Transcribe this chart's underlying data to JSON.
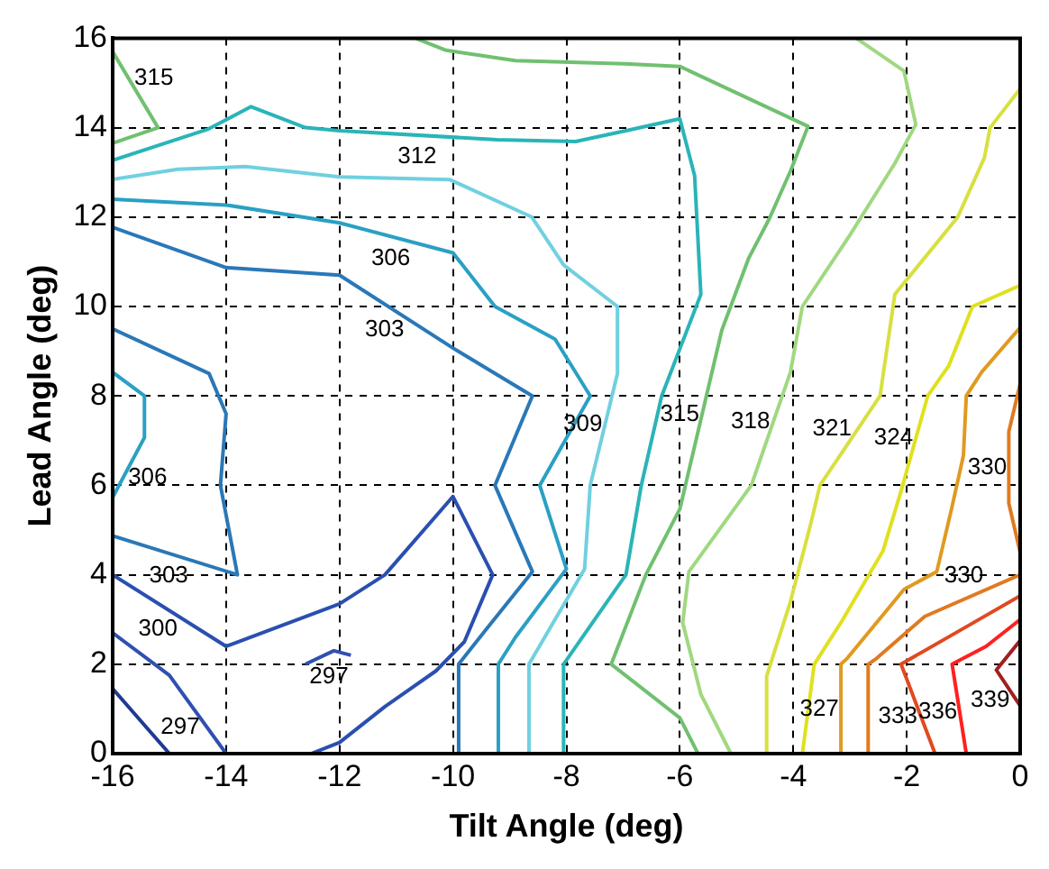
{
  "chart_data": {
    "type": "line",
    "xlabel": "Tilt Angle (deg)",
    "ylabel": "Lead Angle (deg)",
    "xlim": [
      -16,
      0
    ],
    "xticks": [
      -16,
      -14,
      -12,
      -10,
      -8,
      -6,
      -4,
      -2,
      0
    ],
    "ylim": [
      0,
      16
    ],
    "yticks": [
      0,
      2,
      4,
      6,
      8,
      10,
      12,
      14,
      16
    ],
    "grid": true,
    "legend": false,
    "marker": "none",
    "line_style": "solid",
    "series": [
      {
        "color": "#1f3a93",
        "x": [
          -16,
          -15
        ],
        "values": [
          1.45,
          0
        ]
      },
      {
        "name": "297",
        "color": "#3050b0",
        "x": [
          -16,
          -15,
          -14
        ],
        "values": [
          2.7,
          1.75,
          0
        ]
      },
      {
        "name": "297",
        "color": "#3050b0",
        "x": [
          -12.6,
          -12.1,
          -11.8
        ],
        "values": [
          2.0,
          2.3,
          2.2
        ]
      },
      {
        "name": "300",
        "color": "#2a4fb0",
        "x": [
          -16,
          -14,
          -12,
          -11.2,
          -10,
          -9.3,
          -9.8,
          -10.3,
          -11.2,
          -12,
          -12.5
        ],
        "values": [
          4.0,
          2.4,
          3.35,
          4.0,
          5.75,
          4.0,
          2.5,
          1.85,
          1.05,
          0.25,
          0
        ]
      },
      {
        "name": "303",
        "color": "#2a78b8",
        "x": [
          -16,
          -13.8,
          -14.1,
          -14,
          -14.3,
          -16
        ],
        "values": [
          4.87,
          4.0,
          6.0,
          7.6,
          8.5,
          9.5
        ]
      },
      {
        "name": "303",
        "color": "#2a78b8",
        "x": [
          -16,
          -14,
          -12,
          -10,
          -8.6,
          -9.26,
          -8.6,
          -9.4,
          -9.9,
          -9.9
        ],
        "values": [
          11.77,
          10.87,
          10.7,
          9.07,
          8.0,
          6.0,
          4.07,
          2.8,
          2.0,
          0
        ]
      },
      {
        "name": "306",
        "color": "#2aa0c4",
        "x": [
          -16,
          -15.44,
          -15.44,
          -16
        ],
        "values": [
          8.53,
          8.0,
          7.07,
          5.73
        ]
      },
      {
        "name": "306",
        "color": "#2aa0c4",
        "x": [
          -16,
          -14,
          -12,
          -10,
          -9.26,
          -8.2,
          -7.58,
          -8.47,
          -8.0,
          -8.9,
          -9.2,
          -9.2
        ],
        "values": [
          12.4,
          12.27,
          11.87,
          11.2,
          10.0,
          9.27,
          8.0,
          6.0,
          4.13,
          2.6,
          2.0,
          0
        ]
      },
      {
        "name": "309",
        "color": "#70d0e0",
        "x": [
          -16,
          -14.85,
          -13.66,
          -12,
          -10.06,
          -8.61,
          -8.05,
          -7.1,
          -7.1,
          -7.58,
          -7.68,
          -8.66,
          -8.66
        ],
        "values": [
          12.84,
          13.07,
          13.13,
          12.9,
          12.84,
          12.0,
          10.93,
          10.0,
          8.5,
          6.0,
          4.13,
          2.0,
          0
        ]
      },
      {
        "name": "312",
        "color": "#2ab4b8",
        "x": [
          -16,
          -14.31,
          -13.56,
          -12.6,
          -12,
          -9.22,
          -7.84,
          -6.95,
          -6.0,
          -5.74,
          -5.63,
          -6.32,
          -6.68,
          -6.95,
          -7.5,
          -8.05,
          -8.05
        ],
        "values": [
          13.27,
          13.97,
          14.47,
          14.0,
          13.93,
          13.73,
          13.69,
          13.93,
          14.2,
          12.93,
          10.27,
          8.0,
          6.0,
          4.0,
          3.0,
          2.0,
          0
        ]
      },
      {
        "name": "315",
        "color": "#70c070",
        "x": [
          -16,
          -15.2,
          -16
        ],
        "values": [
          15.7,
          14.0,
          13.65
        ]
      },
      {
        "name": "315",
        "color": "#70c070",
        "x": [
          -10.66,
          -10.12,
          -8.9,
          -6.98,
          -6.0,
          -3.74,
          -4.05,
          -4.42,
          -4.79,
          -5.26,
          -6.0,
          -6.6,
          -7.21,
          -6.0,
          -5.68
        ],
        "values": [
          16,
          15.73,
          15.5,
          15.43,
          15.37,
          14.03,
          13.03,
          11.97,
          11.07,
          9.47,
          5.47,
          4.0,
          2.0,
          0.8,
          0
        ]
      },
      {
        "name": "318",
        "color": "#a0d880",
        "x": [
          -2.89,
          -2.05,
          -1.84,
          -2.21,
          -3.0,
          -3.84,
          -4.05,
          -4.74,
          -5.84,
          -5.95,
          -5.63,
          -5.1
        ],
        "values": [
          16,
          15.27,
          14.07,
          13.2,
          11.6,
          10.0,
          8.53,
          6.0,
          4.07,
          2.93,
          1.33,
          0
        ]
      },
      {
        "name": "321",
        "color": "#d8e040",
        "x": [
          0,
          -0.53,
          -0.63,
          -1.1,
          -2.21,
          -2.47,
          -3.53,
          -3.68,
          -4.05,
          -4.47,
          -4.47
        ],
        "values": [
          14.87,
          14.0,
          13.33,
          12.0,
          10.27,
          8.0,
          6.0,
          5.2,
          3.4,
          1.73,
          0
        ]
      },
      {
        "name": "324",
        "color": "#e0e020",
        "x": [
          0,
          -0.84,
          -1.26,
          -1.63,
          -2.1,
          -2.42,
          -3.16,
          -3.63,
          -3.84
        ],
        "values": [
          10.47,
          10.0,
          8.67,
          8.0,
          5.87,
          4.53,
          2.93,
          2.0,
          0
        ]
      },
      {
        "name": "327",
        "color": "#e09a20",
        "x": [
          0,
          -0.68,
          -0.95,
          -1.0,
          -1.21,
          -1.47,
          -2.05,
          -3.05,
          -3.16,
          -3.16
        ],
        "values": [
          9.53,
          8.53,
          8.0,
          6.67,
          5.47,
          4.07,
          3.67,
          2.13,
          2.0,
          0
        ]
      },
      {
        "name": "330",
        "color": "#e07a20",
        "x": [
          0,
          -0.2,
          -0.2,
          0
        ],
        "values": [
          8.27,
          7.2,
          5.6,
          4.5
        ]
      },
      {
        "name": "330",
        "color": "#e07a20",
        "x": [
          0,
          -1.68,
          -2.53,
          -2.68,
          -2.68
        ],
        "values": [
          4.0,
          3.07,
          2.13,
          2.0,
          0
        ]
      },
      {
        "name": "333",
        "color": "#e04a20",
        "x": [
          0,
          -1.0,
          -2.1,
          -1.5
        ],
        "values": [
          3.53,
          2.8,
          2.0,
          0
        ]
      },
      {
        "name": "336",
        "color": "#ff2020",
        "x": [
          0,
          -0.6,
          -1.2,
          -0.95
        ],
        "values": [
          3.0,
          2.4,
          2.0,
          0
        ]
      },
      {
        "name": "339",
        "color": "#a02020",
        "x": [
          0,
          -0.42,
          0
        ],
        "values": [
          2.53,
          1.87,
          1.07
        ]
      }
    ]
  }
}
